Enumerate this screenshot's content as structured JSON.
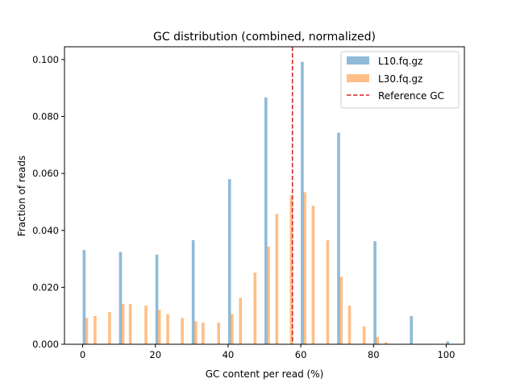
{
  "chart_data": {
    "type": "bar",
    "title": "GC distribution (combined, normalized)",
    "xlabel": "GC content per read (%)",
    "ylabel": "Fraction of reads",
    "xlim": [
      -5,
      105
    ],
    "ylim": [
      0,
      0.1045
    ],
    "xticks": [
      0,
      20,
      40,
      60,
      80,
      100
    ],
    "xtick_labels": [
      "0",
      "20",
      "40",
      "60",
      "80",
      "100"
    ],
    "yticks": [
      0,
      0.02,
      0.04,
      0.06,
      0.08,
      0.1
    ],
    "ytick_labels": [
      "0.000",
      "0.020",
      "0.040",
      "0.060",
      "0.080",
      "0.100"
    ],
    "grid": false,
    "legend_position": "top-right",
    "bar_width": 0.8,
    "series": [
      {
        "name": "L10.fq.gz",
        "color": "#1f77b4",
        "alpha": 0.5,
        "x": [
          0.4,
          10.4,
          20.4,
          30.4,
          40.4,
          50.4,
          60.4,
          70.4,
          80.4,
          90.4,
          100.4
        ],
        "values": [
          0.0331,
          0.0324,
          0.0315,
          0.0366,
          0.058,
          0.0867,
          0.0992,
          0.0743,
          0.0362,
          0.0099,
          0.001
        ]
      },
      {
        "name": "L30.fq.gz",
        "color": "#ff7f0e",
        "alpha": 0.5,
        "x": [
          1.1,
          3.4,
          7.4,
          11.1,
          13.1,
          17.4,
          21.1,
          23.4,
          27.4,
          31.1,
          33.1,
          37.4,
          41.1,
          43.4,
          47.4,
          51.1,
          53.4,
          57.4,
          61.1,
          63.4,
          67.4,
          71.1,
          73.4,
          77.4,
          81.1,
          83.4,
          87.4
        ],
        "values": [
          0.0092,
          0.0099,
          0.0113,
          0.0141,
          0.0141,
          0.0136,
          0.0121,
          0.0106,
          0.0092,
          0.0081,
          0.0076,
          0.0076,
          0.0106,
          0.0163,
          0.0252,
          0.0343,
          0.0458,
          0.0522,
          0.0534,
          0.0487,
          0.0365,
          0.0237,
          0.0136,
          0.0062,
          0.0026,
          0.0007,
          0.0002
        ]
      }
    ],
    "reference_line": {
      "name": "Reference GC",
      "x": 57.7,
      "color": "#d62728",
      "style": "dashed"
    }
  }
}
